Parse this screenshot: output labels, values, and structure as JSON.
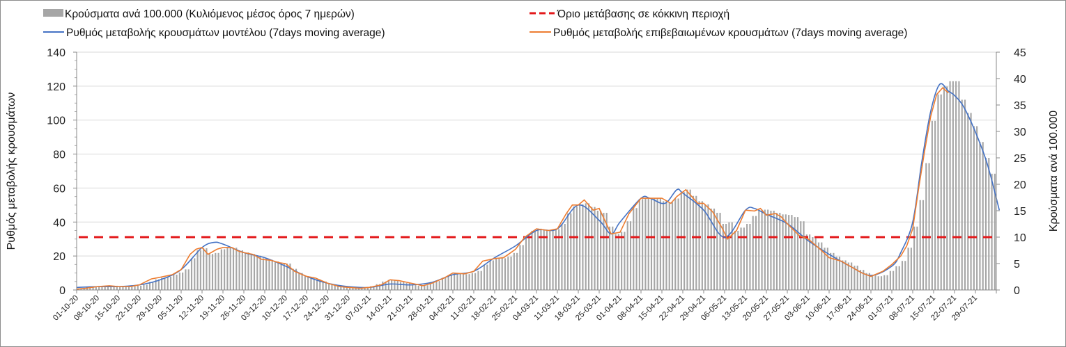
{
  "chart_data": {
    "type": "bar+line",
    "legend": {
      "bars": "Κρούσματα ανά 100.000 (Κυλιόμενος μέσος όρος 7 ημερών)",
      "threshold": "Όριο μετάβασης σε κόκκινη περιοχή",
      "model": "Ρυθμός μεταβολής κρουσμάτων μοντέλου (7days moving average)",
      "confirmed": "Ρυθμός μεταβολής επιβεβαιωμένων κρουσμάτων (7days moving average)",
      "placement": "top"
    },
    "ylabel_left": "Ρυθμός μεταβολής κρουσμάτων",
    "ylabel_right": "Κρούσματα ανά 100.000",
    "ylim_left": [
      0,
      140
    ],
    "ylim_right": [
      0,
      45
    ],
    "yticks_left": [
      "0",
      "20",
      "40",
      "60",
      "80",
      "100",
      "120",
      "140"
    ],
    "yticks_right": [
      "0",
      "5",
      "10",
      "15",
      "20",
      "25",
      "30",
      "35",
      "40",
      "45"
    ],
    "grid": true,
    "x_start": "01-10-20",
    "x_days": 308,
    "xticks": [
      "01-10-20",
      "08-10-20",
      "15-10-20",
      "22-10-20",
      "29-10-20",
      "05-11-20",
      "12-11-20",
      "19-11-20",
      "26-11-20",
      "03-12-20",
      "10-12-20",
      "17-12-20",
      "24-12-20",
      "31-12-20",
      "07-01-21",
      "14-01-21",
      "21-01-21",
      "28-01-21",
      "04-02-21",
      "11-02-21",
      "18-02-21",
      "25-02-21",
      "04-03-21",
      "11-03-21",
      "18-03-21",
      "25-03-21",
      "01-04-21",
      "08-04-21",
      "15-04-21",
      "22-04-21",
      "29-04-21",
      "06-05-21",
      "13-05-21",
      "20-05-21",
      "27-05-21",
      "03-06-21",
      "10-06-21",
      "17-06-21",
      "24-06-21",
      "01-07-21",
      "08-07-21",
      "15-07-21",
      "22-07-21",
      "29-07-21"
    ],
    "threshold_right_axis": 10,
    "bars_step_days": 2,
    "bars_right_axis": [
      0.3,
      0.4,
      0.5,
      0.6,
      0.7,
      0.8,
      0.8,
      0.7,
      0.7,
      0.7,
      0.8,
      1.0,
      1.5,
      2.0,
      2.3,
      2.5,
      2.9,
      3.3,
      3.9,
      6.0,
      7.5,
      7.9,
      6.8,
      7.0,
      7.7,
      8.0,
      8.0,
      7.5,
      7.1,
      6.8,
      6.5,
      6.0,
      5.7,
      5.4,
      5.1,
      5.0,
      4.0,
      3.2,
      2.6,
      2.3,
      2.0,
      1.6,
      1.2,
      0.9,
      0.6,
      0.5,
      0.4,
      0.4,
      0.5,
      0.7,
      1.1,
      1.6,
      1.9,
      1.8,
      1.5,
      1.3,
      1.0,
      0.8,
      0.9,
      1.3,
      1.7,
      2.3,
      2.8,
      3.1,
      3.1,
      3.0,
      3.2,
      3.6,
      4.8,
      5.6,
      5.9,
      6.0,
      6.3,
      7.0,
      8.5,
      10.0,
      11.2,
      11.6,
      11.4,
      11.2,
      11.5,
      12.5,
      14.5,
      15.8,
      16.2,
      16.4,
      15.7,
      15.0,
      14.6,
      12.0,
      10.6,
      11.0,
      13.0,
      15.5,
      17.2,
      17.5,
      17.4,
      17.4,
      16.8,
      16.6,
      17.3,
      18.5,
      19.0,
      17.8,
      16.8,
      16.2,
      15.4,
      14.6,
      12.5,
      12.8,
      11.2,
      11.8,
      12.5,
      14.0,
      15.2,
      15.2,
      15.0,
      14.6,
      14.3,
      14.2,
      13.8,
      13.0,
      10.5,
      10.0,
      9.0,
      8.0,
      7.0,
      6.3,
      5.6,
      5.2,
      4.6,
      3.8,
      3.2,
      2.8,
      2.6,
      2.8,
      3.6,
      4.5,
      5.5,
      8.0,
      12.0,
      17.0,
      24.0,
      32.0,
      37.0,
      38.5,
      39.5,
      39.5,
      36.0,
      33.5,
      31.0,
      28.0,
      25.0,
      22.0,
      16.5
    ],
    "series_left_axis": [
      {
        "name": "model",
        "color": "#4472c4",
        "x": [
          "01-10-20",
          "08-10-20",
          "15-10-20",
          "22-10-20",
          "29-10-20",
          "05-11-20",
          "12-11-20",
          "16-11-20",
          "19-11-20",
          "26-11-20",
          "03-12-20",
          "10-12-20",
          "17-12-20",
          "24-12-20",
          "31-12-20",
          "07-01-21",
          "14-01-21",
          "21-01-21",
          "28-01-21",
          "04-02-21",
          "11-02-21",
          "18-02-21",
          "25-02-21",
          "04-03-21",
          "11-03-21",
          "18-03-21",
          "25-03-21",
          "29-03-21",
          "01-04-21",
          "08-04-21",
          "11-04-21",
          "16-04-21",
          "20-04-21",
          "22-04-21",
          "29-04-21",
          "06-05-21",
          "13-05-21",
          "16-05-21",
          "20-05-21",
          "27-05-21",
          "03-06-21",
          "10-06-21",
          "17-06-21",
          "24-06-21",
          "01-07-21",
          "04-07-21",
          "08-07-21",
          "11-07-21",
          "14-07-21",
          "17-07-21",
          "20-07-21",
          "22-07-21",
          "25-07-21",
          "29-07-21",
          "02-08-21",
          "06-08-21"
        ],
        "y": [
          1.5,
          2,
          2,
          3,
          6,
          12,
          25,
          28,
          27,
          22,
          19,
          14,
          8,
          4,
          2,
          1.5,
          3.5,
          3,
          4.5,
          9,
          11,
          19,
          26,
          35,
          36,
          50,
          41,
          33,
          40,
          54,
          54,
          51,
          59,
          57,
          47,
          31,
          47,
          48,
          44.5,
          39,
          29,
          21,
          14,
          8.6,
          14,
          22,
          40,
          75,
          105,
          121,
          117,
          114.5,
          108,
          93,
          74,
          47
        ]
      },
      {
        "name": "confirmed",
        "color": "#ed7d31",
        "x": [
          "01-10-20",
          "04-10-20",
          "08-10-20",
          "12-10-20",
          "15-10-20",
          "19-10-20",
          "22-10-20",
          "26-10-20",
          "29-10-20",
          "02-11-20",
          "05-11-20",
          "08-11-20",
          "10-11-20",
          "12-11-20",
          "14-11-20",
          "17-11-20",
          "19-11-20",
          "22-11-20",
          "24-11-20",
          "26-11-20",
          "29-11-20",
          "02-12-20",
          "05-12-20",
          "08-12-20",
          "10-12-20",
          "13-12-20",
          "17-12-20",
          "20-12-20",
          "24-12-20",
          "28-12-20",
          "31-12-20",
          "04-01-21",
          "07-01-21",
          "11-01-21",
          "14-01-21",
          "17-01-21",
          "21-01-21",
          "25-01-21",
          "28-01-21",
          "01-02-21",
          "04-02-21",
          "08-02-21",
          "11-02-21",
          "14-02-21",
          "18-02-21",
          "21-02-21",
          "25-02-21",
          "28-02-21",
          "04-03-21",
          "08-03-21",
          "11-03-21",
          "14-03-21",
          "16-03-21",
          "18-03-21",
          "20-03-21",
          "23-03-21",
          "25-03-21",
          "29-03-21",
          "01-04-21",
          "04-04-21",
          "08-04-21",
          "12-04-21",
          "15-04-21",
          "18-04-21",
          "20-04-21",
          "23-04-21",
          "27-04-21",
          "29-04-21",
          "02-05-21",
          "05-05-21",
          "07-05-21",
          "10-05-21",
          "13-05-21",
          "16-05-21",
          "18-05-21",
          "20-05-21",
          "23-05-21",
          "25-05-21",
          "27-05-21",
          "31-05-21",
          "03-06-21",
          "07-06-21",
          "10-06-21",
          "14-06-21",
          "17-06-21",
          "21-06-21",
          "24-06-21",
          "28-06-21",
          "01-07-21",
          "04-07-21",
          "06-07-21",
          "08-07-21",
          "10-07-21",
          "12-07-21",
          "14-07-21",
          "16-07-21",
          "18-07-21",
          "20-07-21"
        ],
        "y": [
          0.5,
          1,
          2,
          2.5,
          2,
          2,
          3,
          6.5,
          7.5,
          9,
          12,
          21,
          24,
          25,
          21,
          24,
          25,
          25,
          23,
          22,
          21,
          18,
          17.5,
          16,
          15.5,
          11,
          8,
          7,
          4,
          2,
          1.5,
          1,
          1.5,
          3,
          6,
          5.5,
          4,
          2.5,
          4,
          7,
          10,
          9.5,
          11,
          17,
          18.5,
          19,
          24,
          31,
          36,
          35,
          36,
          45,
          50,
          50,
          53,
          47,
          48,
          33,
          34,
          45,
          54,
          54,
          54,
          51,
          55,
          59,
          51,
          51,
          46,
          37,
          30,
          35,
          47,
          46.5,
          48,
          44,
          45,
          43,
          39,
          32,
          30,
          24,
          19,
          17,
          14,
          10,
          8,
          11,
          15,
          20,
          26,
          36,
          60,
          82,
          102,
          115,
          119,
          116
        ]
      }
    ]
  }
}
